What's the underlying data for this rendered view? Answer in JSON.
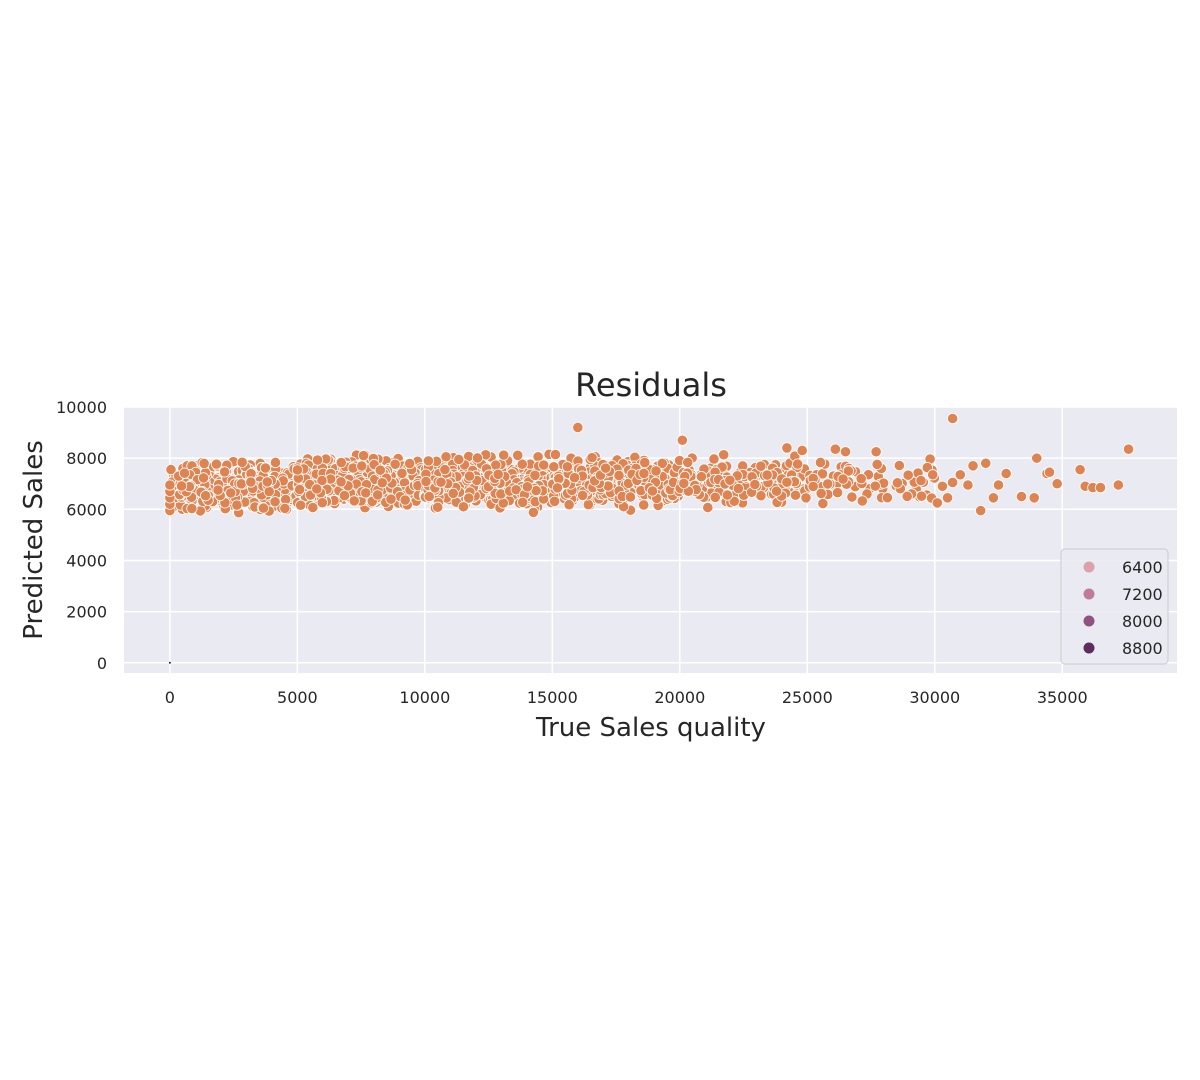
{
  "chart_data": {
    "type": "scatter",
    "title": "Residuals",
    "xlabel": "True Sales quality",
    "ylabel": "Predicted Sales",
    "xlim": [
      -1800,
      39500
    ],
    "ylim": [
      -400,
      10000
    ],
    "x_ticks": [
      0,
      5000,
      10000,
      15000,
      20000,
      25000,
      30000,
      35000
    ],
    "y_ticks": [
      0,
      2000,
      4000,
      6000,
      8000,
      10000
    ],
    "grid": true,
    "point_color": "#dd8452",
    "background_color": "#eaeaf2",
    "legend": {
      "placement": "lower-right",
      "entries": [
        {
          "label": "6400",
          "color": "#dba3a8"
        },
        {
          "label": "7200",
          "color": "#c07b98"
        },
        {
          "label": "8000",
          "color": "#92527f"
        },
        {
          "label": "8800",
          "color": "#5e2d5d"
        }
      ]
    },
    "cloud": {
      "description_of_density": "dense band",
      "bands": [
        {
          "x_from": 0,
          "x_to": 5000,
          "y_min": 5700,
          "y_max": 8100,
          "count": 520
        },
        {
          "x_from": 5000,
          "x_to": 10000,
          "y_min": 5700,
          "y_max": 8300,
          "count": 560
        },
        {
          "x_from": 10000,
          "x_to": 15000,
          "y_min": 5700,
          "y_max": 8400,
          "count": 470
        },
        {
          "x_from": 15000,
          "x_to": 20000,
          "y_min": 5800,
          "y_max": 8400,
          "count": 330
        },
        {
          "x_from": 20000,
          "x_to": 25000,
          "y_min": 5800,
          "y_max": 8300,
          "count": 170
        },
        {
          "x_from": 25000,
          "x_to": 30000,
          "y_min": 6000,
          "y_max": 8200,
          "count": 75
        }
      ]
    },
    "points": [
      [
        0,
        5950
      ],
      [
        0,
        6200
      ],
      [
        0,
        6450
      ],
      [
        0,
        6700
      ],
      [
        0,
        6950
      ],
      [
        16000,
        9200
      ],
      [
        20100,
        8700
      ],
      [
        30700,
        9550
      ],
      [
        30100,
        6250
      ],
      [
        30300,
        6900
      ],
      [
        30500,
        6450
      ],
      [
        30700,
        7050
      ],
      [
        31000,
        7350
      ],
      [
        31300,
        6950
      ],
      [
        31500,
        7700
      ],
      [
        31800,
        5950
      ],
      [
        32000,
        7800
      ],
      [
        32300,
        6450
      ],
      [
        32500,
        6950
      ],
      [
        32800,
        7400
      ],
      [
        33400,
        6500
      ],
      [
        33900,
        6450
      ],
      [
        34000,
        8000
      ],
      [
        34400,
        7400
      ],
      [
        34500,
        7450
      ],
      [
        34800,
        7000
      ],
      [
        35700,
        7550
      ],
      [
        35900,
        6900
      ],
      [
        36200,
        6850
      ],
      [
        36500,
        6850
      ],
      [
        37200,
        6950
      ],
      [
        37600,
        8350
      ],
      [
        27700,
        8250
      ],
      [
        26500,
        8250
      ],
      [
        26100,
        8350
      ],
      [
        24800,
        8300
      ],
      [
        24200,
        8400
      ]
    ],
    "annotations": [
      {
        "x": 0,
        "y": 0,
        "mark": "tiny dark dot"
      }
    ]
  }
}
